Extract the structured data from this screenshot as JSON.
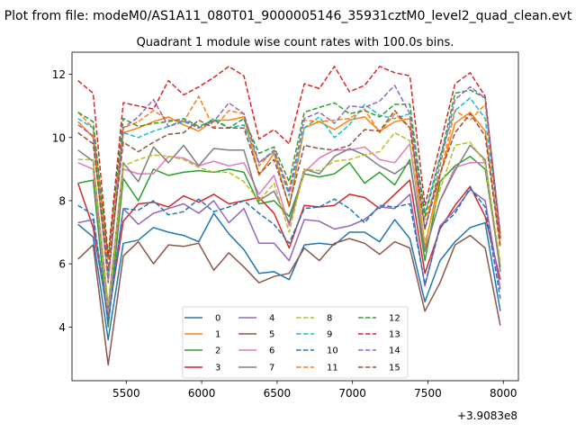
{
  "chart_data": {
    "type": "line",
    "suptitle": "Plot from file: modeM0/AS1A11_080T01_9000005146_35931cztM0_level2_quad_clean.evt",
    "title": "Quadrant 1 module wise count rates with 100.0s bins.",
    "xlabel": "",
    "ylabel": "",
    "x_offset_label": "+3.9083e8",
    "xlim": [
      5140,
      8100
    ],
    "ylim": [
      2.3,
      12.7
    ],
    "xticks": [
      5500,
      6000,
      6500,
      7000,
      7500,
      8000
    ],
    "xtick_labels": [
      "5500",
      "6000",
      "6500",
      "7000",
      "7500",
      "8000"
    ],
    "yticks": [
      4,
      6,
      8,
      10,
      12
    ],
    "ytick_labels": [
      "4",
      "6",
      "8",
      "10",
      "12"
    ],
    "legend_location": "lower center",
    "x": [
      5180,
      5280,
      5380,
      5480,
      5580,
      5680,
      5780,
      5880,
      5980,
      6080,
      6180,
      6280,
      6380,
      6480,
      6580,
      6680,
      6780,
      6880,
      6980,
      7080,
      7180,
      7280,
      7380,
      7480,
      7580,
      7680,
      7780,
      7880,
      7980
    ],
    "series": [
      {
        "name": "0",
        "color": "#1f77b4",
        "dash": "solid",
        "values": [
          7.25,
          6.85,
          3.6,
          6.65,
          6.75,
          7.15,
          7.0,
          6.9,
          6.7,
          7.6,
          6.95,
          6.45,
          5.7,
          5.75,
          5.5,
          6.6,
          6.65,
          6.6,
          7.0,
          7.0,
          6.7,
          7.4,
          6.8,
          4.8,
          6.1,
          6.7,
          7.15,
          7.3,
          4.5
        ]
      },
      {
        "name": "1",
        "color": "#ff7f0e",
        "dash": "solid",
        "values": [
          10.5,
          10.0,
          5.5,
          10.15,
          10.3,
          10.5,
          10.65,
          10.4,
          10.2,
          10.55,
          10.55,
          10.65,
          8.8,
          9.5,
          7.8,
          10.3,
          10.5,
          10.25,
          10.55,
          10.65,
          10.2,
          10.5,
          10.6,
          6.5,
          8.8,
          10.45,
          10.8,
          10.2,
          6.6
        ]
      },
      {
        "name": "2",
        "color": "#2ca02c",
        "dash": "solid",
        "values": [
          8.55,
          8.65,
          4.0,
          8.7,
          8.0,
          9.0,
          8.8,
          8.9,
          8.95,
          8.9,
          9.0,
          8.9,
          7.9,
          8.0,
          7.5,
          8.85,
          8.75,
          8.85,
          9.2,
          8.55,
          8.9,
          8.5,
          9.3,
          6.1,
          8.6,
          9.1,
          9.4,
          9.0,
          5.9
        ]
      },
      {
        "name": "3",
        "color": "#d62728",
        "dash": "solid",
        "values": [
          8.55,
          7.15,
          4.3,
          7.35,
          7.9,
          7.95,
          7.8,
          8.15,
          7.95,
          8.2,
          7.9,
          8.0,
          8.1,
          7.6,
          6.5,
          7.85,
          7.8,
          7.85,
          8.2,
          8.1,
          7.75,
          8.2,
          8.65,
          5.7,
          7.1,
          7.85,
          8.45,
          7.5,
          5.5
        ]
      },
      {
        "name": "4",
        "color": "#9467bd",
        "dash": "solid",
        "values": [
          7.3,
          7.4,
          4.2,
          7.75,
          7.25,
          7.6,
          7.75,
          7.9,
          7.6,
          8.0,
          7.3,
          7.75,
          6.65,
          6.65,
          6.1,
          7.4,
          7.35,
          7.1,
          7.2,
          7.4,
          7.8,
          7.75,
          8.2,
          5.3,
          7.2,
          7.7,
          8.35,
          8.0,
          5.2
        ]
      },
      {
        "name": "5",
        "color": "#8c564b",
        "dash": "solid",
        "values": [
          6.15,
          6.6,
          2.8,
          6.25,
          6.7,
          6.0,
          6.6,
          6.55,
          6.65,
          5.8,
          6.35,
          5.9,
          5.4,
          5.6,
          5.7,
          6.5,
          6.1,
          6.65,
          6.8,
          6.65,
          6.3,
          6.7,
          6.5,
          4.5,
          5.4,
          6.6,
          6.9,
          6.5,
          4.05
        ]
      },
      {
        "name": "6",
        "color": "#e377c2",
        "dash": "solid",
        "values": [
          9.2,
          9.0,
          4.5,
          9.0,
          8.85,
          8.85,
          9.4,
          9.35,
          9.1,
          9.25,
          9.1,
          9.2,
          8.2,
          8.8,
          7.2,
          8.9,
          9.35,
          9.6,
          9.6,
          9.7,
          9.3,
          9.2,
          9.8,
          6.4,
          8.0,
          9.05,
          9.2,
          9.2,
          5.75
        ]
      },
      {
        "name": "7",
        "color": "#7f7f7f",
        "dash": "solid",
        "values": [
          9.6,
          9.25,
          4.6,
          9.2,
          8.6,
          9.7,
          9.2,
          9.75,
          9.1,
          9.65,
          9.6,
          9.6,
          8.0,
          8.3,
          7.3,
          9.0,
          8.85,
          9.4,
          9.65,
          9.45,
          9.1,
          8.85,
          9.2,
          6.4,
          8.0,
          8.95,
          9.75,
          9.3,
          5.75
        ]
      },
      {
        "name": "8",
        "color": "#bcbd22",
        "dash": "dash",
        "values": [
          9.3,
          9.3,
          4.7,
          9.1,
          9.3,
          9.45,
          9.4,
          9.3,
          9.05,
          8.9,
          8.9,
          8.6,
          8.0,
          8.55,
          7.0,
          9.0,
          8.95,
          9.25,
          9.3,
          9.45,
          9.55,
          10.15,
          9.9,
          6.7,
          8.35,
          9.75,
          9.85,
          9.2,
          6.05
        ]
      },
      {
        "name": "9",
        "color": "#17becf",
        "dash": "dash",
        "values": [
          10.6,
          10.3,
          5.7,
          10.15,
          10.0,
          10.2,
          10.35,
          10.5,
          10.3,
          10.6,
          10.3,
          10.4,
          9.2,
          9.55,
          8.15,
          10.3,
          10.65,
          10.0,
          10.4,
          11.05,
          10.7,
          10.6,
          10.75,
          7.6,
          9.4,
          10.85,
          11.25,
          10.6,
          6.9
        ]
      },
      {
        "name": "10",
        "color": "#1f77b4",
        "dash": "dash",
        "values": [
          7.85,
          7.55,
          4.15,
          7.75,
          7.7,
          8.0,
          7.55,
          7.65,
          8.05,
          7.65,
          7.8,
          8.0,
          7.6,
          7.25,
          6.65,
          7.75,
          7.8,
          8.05,
          7.75,
          7.3,
          7.85,
          7.8,
          7.9,
          5.35,
          7.15,
          7.6,
          8.4,
          7.8,
          4.9
        ]
      },
      {
        "name": "11",
        "color": "#ff7f0e",
        "dash": "dash",
        "values": [
          10.8,
          10.3,
          6.1,
          10.3,
          10.5,
          10.85,
          10.55,
          10.5,
          11.3,
          10.3,
          10.85,
          10.75,
          9.1,
          9.6,
          8.35,
          10.55,
          10.5,
          10.55,
          10.6,
          10.9,
          10.15,
          10.75,
          10.3,
          7.4,
          8.8,
          10.85,
          10.55,
          11.05,
          6.9
        ]
      },
      {
        "name": "12",
        "color": "#2ca02c",
        "dash": "dash",
        "values": [
          10.8,
          10.5,
          6.2,
          10.6,
          10.35,
          10.45,
          10.5,
          10.6,
          10.35,
          10.55,
          10.3,
          10.6,
          9.5,
          9.7,
          8.6,
          10.8,
          10.95,
          11.1,
          10.75,
          10.85,
          10.65,
          11.05,
          11.05,
          7.5,
          9.3,
          11.4,
          11.5,
          11.25,
          6.85
        ]
      },
      {
        "name": "13",
        "color": "#d62728",
        "dash": "dash",
        "values": [
          11.8,
          11.4,
          6.25,
          11.1,
          11.0,
          10.9,
          11.8,
          11.35,
          11.6,
          11.9,
          12.25,
          11.95,
          9.95,
          10.25,
          9.8,
          11.7,
          11.55,
          12.25,
          11.45,
          11.65,
          12.25,
          12.05,
          11.95,
          7.85,
          9.75,
          11.7,
          12.05,
          11.3,
          6.8
        ]
      },
      {
        "name": "14",
        "color": "#9467bd",
        "dash": "dash",
        "values": [
          10.4,
          10.05,
          5.4,
          10.3,
          10.65,
          11.2,
          10.35,
          10.55,
          10.3,
          10.5,
          11.1,
          10.75,
          9.2,
          9.6,
          8.25,
          10.6,
          10.8,
          10.45,
          11.0,
          10.95,
          11.15,
          11.65,
          10.75,
          7.1,
          9.1,
          11.2,
          11.6,
          11.25,
          7.0
        ]
      },
      {
        "name": "15",
        "color": "#8c564b",
        "dash": "dash",
        "values": [
          10.15,
          9.8,
          5.8,
          9.85,
          9.55,
          9.85,
          10.1,
          10.15,
          10.55,
          10.3,
          10.3,
          10.3,
          8.85,
          9.3,
          7.85,
          9.75,
          9.65,
          9.6,
          9.75,
          10.25,
          10.2,
          10.85,
          10.3,
          7.1,
          8.85,
          10.15,
          10.75,
          10.05,
          6.5
        ]
      }
    ]
  }
}
